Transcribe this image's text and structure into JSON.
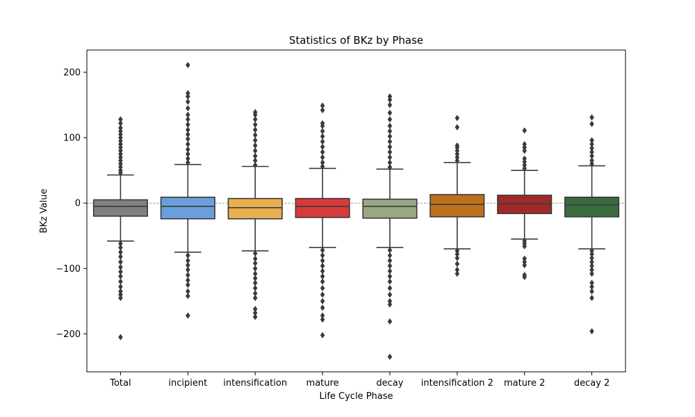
{
  "chart_data": {
    "type": "boxplot",
    "title": "Statistics of BKz by Phase",
    "xlabel": "Life Cycle Phase",
    "ylabel": "BKz Value",
    "ylim": [
      -258,
      234
    ],
    "yticks": [
      -200,
      -100,
      0,
      100,
      200
    ],
    "reference_line": 0,
    "grid": false,
    "categories": [
      {
        "name": "Total",
        "color": "#808080",
        "q1": -20,
        "median": -5,
        "q3": 5,
        "whisker_low": -58,
        "whisker_high": 43,
        "outliers_high": [
          46,
          50,
          55,
          60,
          65,
          70,
          75,
          80,
          85,
          90,
          95,
          100,
          105,
          110,
          115,
          122,
          128
        ],
        "outliers_low": [
          -62,
          -68,
          -75,
          -82,
          -90,
          -98,
          -105,
          -112,
          -120,
          -128,
          -135,
          -140,
          -145,
          -205
        ]
      },
      {
        "name": "incipient",
        "color": "#6a9fdb",
        "q1": -24,
        "median": -5,
        "q3": 9,
        "whisker_low": -75,
        "whisker_high": 59,
        "outliers_high": [
          62,
          68,
          75,
          82,
          90,
          98,
          105,
          112,
          120,
          128,
          135,
          145,
          155,
          163,
          168,
          211
        ],
        "outliers_low": [
          -80,
          -88,
          -95,
          -102,
          -110,
          -118,
          -125,
          -135,
          -142,
          -172
        ]
      },
      {
        "name": "intensification",
        "color": "#e9b04f",
        "q1": -24,
        "median": -7,
        "q3": 7,
        "whisker_low": -73,
        "whisker_high": 56,
        "outliers_high": [
          58,
          65,
          72,
          80,
          88,
          96,
          104,
          112,
          120,
          128,
          135,
          139
        ],
        "outliers_low": [
          -77,
          -85,
          -92,
          -100,
          -108,
          -115,
          -122,
          -130,
          -138,
          -145,
          -162,
          -168,
          -174
        ]
      },
      {
        "name": "mature",
        "color": "#d63b3b",
        "q1": -22,
        "median": -5,
        "q3": 7,
        "whisker_low": -68,
        "whisker_high": 53,
        "outliers_high": [
          56,
          62,
          70,
          78,
          86,
          94,
          102,
          110,
          118,
          122,
          142,
          149
        ],
        "outliers_low": [
          -72,
          -80,
          -88,
          -96,
          -104,
          -112,
          -120,
          -130,
          -140,
          -150,
          -160,
          -172,
          -178,
          -202
        ]
      },
      {
        "name": "decay",
        "color": "#98a884",
        "q1": -23,
        "median": -5,
        "q3": 6,
        "whisker_low": -68,
        "whisker_high": 52,
        "outliers_high": [
          55,
          62,
          70,
          78,
          86,
          94,
          102,
          110,
          118,
          128,
          138,
          150,
          158,
          163
        ],
        "outliers_low": [
          -72,
          -80,
          -88,
          -96,
          -104,
          -112,
          -120,
          -130,
          -140,
          -150,
          -155,
          -181,
          -235
        ]
      },
      {
        "name": "intensification 2",
        "color": "#c0701c",
        "q1": -21,
        "median": -2,
        "q3": 13,
        "whisker_low": -70,
        "whisker_high": 62,
        "outliers_high": [
          65,
          70,
          75,
          80,
          85,
          88,
          116,
          130
        ],
        "outliers_low": [
          -73,
          -78,
          -84,
          -93,
          -102,
          -108
        ]
      },
      {
        "name": "mature 2",
        "color": "#a02a2a",
        "q1": -16,
        "median": -1,
        "q3": 12,
        "whisker_low": -55,
        "whisker_high": 50,
        "outliers_high": [
          53,
          58,
          63,
          68,
          80,
          85,
          90,
          111
        ],
        "outliers_low": [
          -58,
          -62,
          -66,
          -85,
          -90,
          -95,
          -110,
          -113
        ]
      },
      {
        "name": "decay 2",
        "color": "#3a6b3e",
        "q1": -21,
        "median": -3,
        "q3": 9,
        "whisker_low": -70,
        "whisker_high": 57,
        "outliers_high": [
          60,
          65,
          72,
          78,
          84,
          90,
          96,
          121,
          131
        ],
        "outliers_low": [
          -73,
          -78,
          -84,
          -90,
          -96,
          -102,
          -108,
          -122,
          -128,
          -135,
          -145,
          -196
        ]
      }
    ]
  }
}
